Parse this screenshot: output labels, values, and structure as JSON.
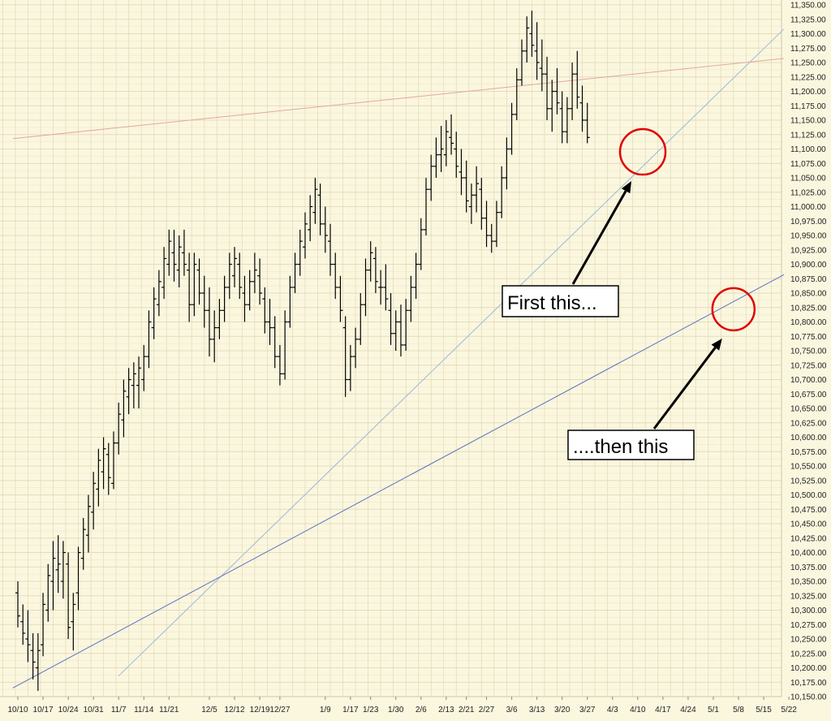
{
  "chart_data": {
    "type": "ohlc",
    "title": "",
    "xlabel": "",
    "ylabel": "",
    "ylim": [
      10150,
      11350
    ],
    "grid": true,
    "colors": {
      "background": "#fbf7df",
      "grid": "#e3dcbb",
      "bars": "#000000",
      "upper_trendline": "#9cb8d8",
      "lower_trendline": "#5f72c4",
      "resistance_line": "#e2a8a0",
      "circle": "#e00000",
      "arrow": "#000000"
    },
    "y_ticks": [
      "10,150.00",
      "10,175.00",
      "10,200.00",
      "10,225.00",
      "10,250.00",
      "10,275.00",
      "10,300.00",
      "10,325.00",
      "10,350.00",
      "10,375.00",
      "10,400.00",
      "10,425.00",
      "10,450.00",
      "10,475.00",
      "10,500.00",
      "10,525.00",
      "10,550.00",
      "10,575.00",
      "10,600.00",
      "10,625.00",
      "10,650.00",
      "10,675.00",
      "10,700.00",
      "10,725.00",
      "10,750.00",
      "10,775.00",
      "10,800.00",
      "10,825.00",
      "10,850.00",
      "10,875.00",
      "10,900.00",
      "10,925.00",
      "10,950.00",
      "10,975.00",
      "11,000.00",
      "11,025.00",
      "11,050.00",
      "11,075.00",
      "11,100.00",
      "11,125.00",
      "11,150.00",
      "11,175.00",
      "11,200.00",
      "11,225.00",
      "11,250.00",
      "11,275.00",
      "11,300.00",
      "11,325.00",
      "11,350.00"
    ],
    "x_ticks": [
      {
        "label": "10/10",
        "idx": 0
      },
      {
        "label": "10/17",
        "idx": 5
      },
      {
        "label": "10/24",
        "idx": 10
      },
      {
        "label": "10/31",
        "idx": 15
      },
      {
        "label": "11/7",
        "idx": 20
      },
      {
        "label": "11/14",
        "idx": 25
      },
      {
        "label": "11/21",
        "idx": 30
      },
      {
        "label": "12/5",
        "idx": 38
      },
      {
        "label": "12/12",
        "idx": 43
      },
      {
        "label": "12/19",
        "idx": 48
      },
      {
        "label": "12/27",
        "idx": 52
      },
      {
        "label": "1/9",
        "idx": 61
      },
      {
        "label": "1/17",
        "idx": 66
      },
      {
        "label": "1/23",
        "idx": 70
      },
      {
        "label": "1/30",
        "idx": 75
      },
      {
        "label": "2/6",
        "idx": 80
      },
      {
        "label": "2/13",
        "idx": 85
      },
      {
        "label": "2/21",
        "idx": 89
      },
      {
        "label": "2/27",
        "idx": 93
      },
      {
        "label": "3/6",
        "idx": 98
      },
      {
        "label": "3/13",
        "idx": 103
      },
      {
        "label": "3/20",
        "idx": 108
      },
      {
        "label": "3/27",
        "idx": 113
      },
      {
        "label": "4/3",
        "idx": 118
      },
      {
        "label": "4/10",
        "idx": 123
      },
      {
        "label": "4/17",
        "idx": 128
      },
      {
        "label": "4/24",
        "idx": 133
      },
      {
        "label": "5/1",
        "idx": 138
      },
      {
        "label": "5/8",
        "idx": 143
      },
      {
        "label": "5/15",
        "idx": 148
      },
      {
        "label": "5/22",
        "idx": 153
      }
    ],
    "ohlc": [
      [
        10330,
        10350,
        10270,
        10290
      ],
      [
        10280,
        10310,
        10240,
        10260
      ],
      [
        10250,
        10300,
        10210,
        10240
      ],
      [
        10230,
        10260,
        10180,
        10210
      ],
      [
        10200,
        10260,
        10160,
        10230
      ],
      [
        10240,
        10330,
        10220,
        10310
      ],
      [
        10300,
        10380,
        10280,
        10360
      ],
      [
        10350,
        10420,
        10300,
        10390
      ],
      [
        10370,
        10430,
        10330,
        10380
      ],
      [
        10350,
        10420,
        10320,
        10400
      ],
      [
        10380,
        10400,
        10250,
        10270
      ],
      [
        10280,
        10330,
        10230,
        10310
      ],
      [
        10330,
        10410,
        10300,
        10400
      ],
      [
        10390,
        10460,
        10370,
        10440
      ],
      [
        10430,
        10500,
        10400,
        10480
      ],
      [
        10470,
        10540,
        10440,
        10520
      ],
      [
        10510,
        10580,
        10480,
        10560
      ],
      [
        10540,
        10600,
        10510,
        10580
      ],
      [
        10570,
        10590,
        10500,
        10530
      ],
      [
        10520,
        10610,
        10510,
        10590
      ],
      [
        10590,
        10660,
        10570,
        10640
      ],
      [
        10630,
        10700,
        10600,
        10680
      ],
      [
        10670,
        10720,
        10640,
        10700
      ],
      [
        10690,
        10730,
        10650,
        10710
      ],
      [
        10690,
        10740,
        10650,
        10720
      ],
      [
        10700,
        10760,
        10680,
        10740
      ],
      [
        10740,
        10820,
        10720,
        10800
      ],
      [
        10790,
        10860,
        10770,
        10840
      ],
      [
        10830,
        10890,
        10810,
        10870
      ],
      [
        10860,
        10930,
        10840,
        10910
      ],
      [
        10900,
        10960,
        10880,
        10940
      ],
      [
        10920,
        10960,
        10870,
        10900
      ],
      [
        10890,
        10950,
        10860,
        10930
      ],
      [
        10920,
        10960,
        10880,
        10900
      ],
      [
        10890,
        10920,
        10800,
        10830
      ],
      [
        10830,
        10920,
        10810,
        10900
      ],
      [
        10890,
        10910,
        10830,
        10850
      ],
      [
        10850,
        10880,
        10790,
        10820
      ],
      [
        10820,
        10860,
        10740,
        10770
      ],
      [
        10770,
        10820,
        10730,
        10790
      ],
      [
        10790,
        10840,
        10770,
        10820
      ],
      [
        10820,
        10880,
        10800,
        10860
      ],
      [
        10860,
        10920,
        10840,
        10900
      ],
      [
        10880,
        10930,
        10860,
        10910
      ],
      [
        10900,
        10920,
        10840,
        10860
      ],
      [
        10850,
        10880,
        10800,
        10830
      ],
      [
        10830,
        10890,
        10820,
        10870
      ],
      [
        10870,
        10920,
        10850,
        10890
      ],
      [
        10880,
        10910,
        10830,
        10850
      ],
      [
        10840,
        10860,
        10780,
        10800
      ],
      [
        10800,
        10840,
        10760,
        10790
      ],
      [
        10790,
        10810,
        10720,
        10740
      ],
      [
        10740,
        10760,
        10690,
        10710
      ],
      [
        10710,
        10820,
        10700,
        10800
      ],
      [
        10800,
        10880,
        10790,
        10860
      ],
      [
        10860,
        10920,
        10850,
        10900
      ],
      [
        10900,
        10960,
        10880,
        10940
      ],
      [
        10930,
        10990,
        10910,
        10970
      ],
      [
        10960,
        11020,
        10940,
        11000
      ],
      [
        10990,
        11050,
        10970,
        11030
      ],
      [
        11020,
        11040,
        10950,
        10970
      ],
      [
        10970,
        11000,
        10920,
        10950
      ],
      [
        10940,
        10970,
        10880,
        10900
      ],
      [
        10900,
        10920,
        10840,
        10860
      ],
      [
        10860,
        10880,
        10800,
        10820
      ],
      [
        10790,
        10810,
        10670,
        10700
      ],
      [
        10700,
        10760,
        10680,
        10740
      ],
      [
        10740,
        10790,
        10720,
        10770
      ],
      [
        10770,
        10850,
        10760,
        10830
      ],
      [
        10830,
        10910,
        10810,
        10890
      ],
      [
        10890,
        10940,
        10870,
        10920
      ],
      [
        10910,
        10930,
        10850,
        10870
      ],
      [
        10860,
        10890,
        10830,
        10860
      ],
      [
        10860,
        10900,
        10820,
        10840
      ],
      [
        10820,
        10850,
        10760,
        10780
      ],
      [
        10780,
        10820,
        10750,
        10800
      ],
      [
        10800,
        10830,
        10740,
        10760
      ],
      [
        10760,
        10840,
        10750,
        10820
      ],
      [
        10820,
        10880,
        10800,
        10860
      ],
      [
        10860,
        10920,
        10840,
        10900
      ],
      [
        10900,
        10980,
        10890,
        10960
      ],
      [
        10960,
        11050,
        10950,
        11030
      ],
      [
        11030,
        11090,
        11010,
        11070
      ],
      [
        11070,
        11120,
        11050,
        11090
      ],
      [
        11090,
        11140,
        11060,
        11100
      ],
      [
        11090,
        11150,
        11070,
        11130
      ],
      [
        11120,
        11160,
        11090,
        11110
      ],
      [
        11100,
        11130,
        11050,
        11070
      ],
      [
        11060,
        11100,
        11020,
        11050
      ],
      [
        11050,
        11080,
        10990,
        11010
      ],
      [
        11000,
        11040,
        10970,
        11020
      ],
      [
        11020,
        11070,
        10990,
        11040
      ],
      [
        11030,
        11050,
        10960,
        10980
      ],
      [
        10980,
        11010,
        10930,
        10950
      ],
      [
        10950,
        10970,
        10920,
        10940
      ],
      [
        10940,
        11010,
        10930,
        10990
      ],
      [
        10990,
        11070,
        10980,
        11050
      ],
      [
        11050,
        11120,
        11030,
        11100
      ],
      [
        11100,
        11180,
        11090,
        11160
      ],
      [
        11160,
        11240,
        11150,
        11220
      ],
      [
        11220,
        11290,
        11210,
        11270
      ],
      [
        11270,
        11330,
        11250,
        11310
      ],
      [
        11300,
        11340,
        11260,
        11280
      ],
      [
        11270,
        11320,
        11220,
        11250
      ],
      [
        11240,
        11290,
        11200,
        11230
      ],
      [
        11230,
        11260,
        11150,
        11170
      ],
      [
        11170,
        11220,
        11130,
        11200
      ],
      [
        11200,
        11240,
        11160,
        11180
      ],
      [
        11170,
        11200,
        11110,
        11130
      ],
      [
        11130,
        11190,
        11110,
        11170
      ],
      [
        11170,
        11250,
        11150,
        11230
      ],
      [
        11230,
        11270,
        11170,
        11190
      ],
      [
        11180,
        11210,
        11130,
        11150
      ],
      [
        11150,
        11180,
        11110,
        11120
      ]
    ],
    "lines": [
      {
        "name": "upper-trendline",
        "from": {
          "idx": 20,
          "value": 10186
        },
        "to": {
          "idx": 152,
          "value": 11308
        }
      },
      {
        "name": "lower-trendline",
        "from": {
          "idx": -1,
          "value": 10165
        },
        "to": {
          "idx": 152,
          "value": 10882
        }
      },
      {
        "name": "resistance-line",
        "from": {
          "idx": -1,
          "value": 11118
        },
        "to": {
          "idx": 152,
          "value": 11257
        }
      }
    ],
    "annotations": [
      {
        "name": "first",
        "text": "First this...",
        "circle": {
          "idx": 124,
          "value": 11095
        }
      },
      {
        "name": "then",
        "text": "....then this",
        "circle": {
          "idx": 142,
          "value": 10822
        }
      }
    ]
  }
}
